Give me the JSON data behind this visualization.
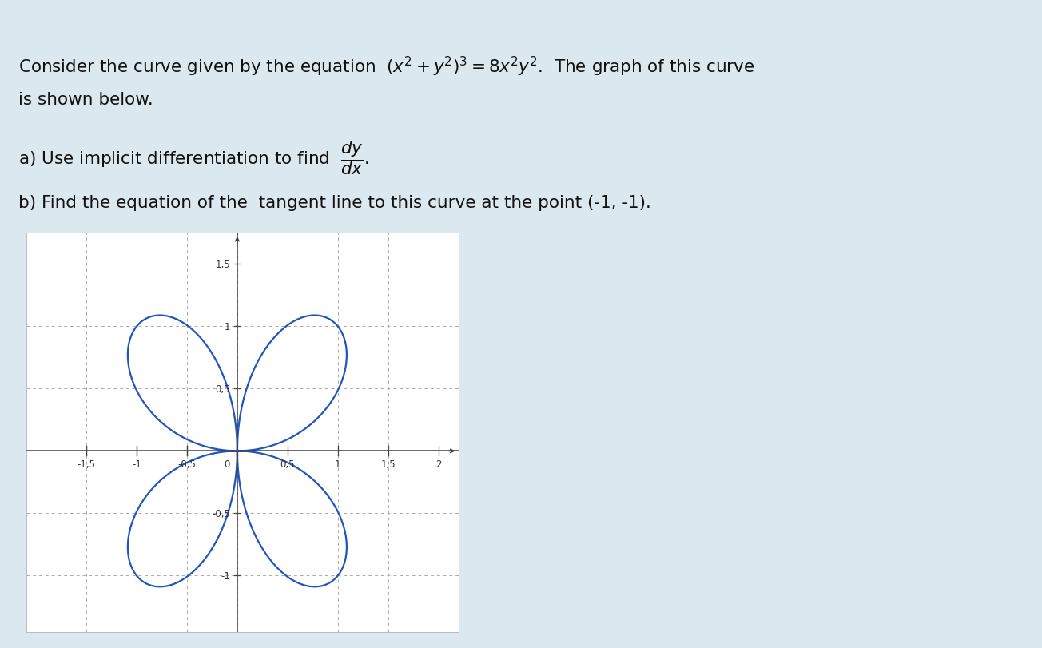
{
  "background_color": "#dce8f0",
  "plot_bg_color": "#ffffff",
  "plot_border_color": "#bbbbbb",
  "curve_color": "#2255bb",
  "curve_linewidth": 1.6,
  "axis_color": "#444444",
  "grid_color": "#aaaaaa",
  "tick_label_color": "#333333",
  "text_color": "#111111",
  "xlim": [
    -2.1,
    2.2
  ],
  "ylim": [
    -1.45,
    1.75
  ],
  "xticks": [
    -1.5,
    -1.0,
    -0.5,
    0.5,
    1.0,
    1.5,
    2.0
  ],
  "xtick_labels": [
    "-1,5",
    "-1",
    "-0,5",
    "0,5",
    "1",
    "1,5",
    "2"
  ],
  "yticks": [
    -1.0,
    -0.5,
    0.5,
    1.0,
    1.5
  ],
  "ytick_labels": [
    "-1",
    "-0,5",
    "0,5",
    "1",
    "1,5"
  ],
  "font_size_text": 15.5,
  "font_size_tick": 8.5
}
